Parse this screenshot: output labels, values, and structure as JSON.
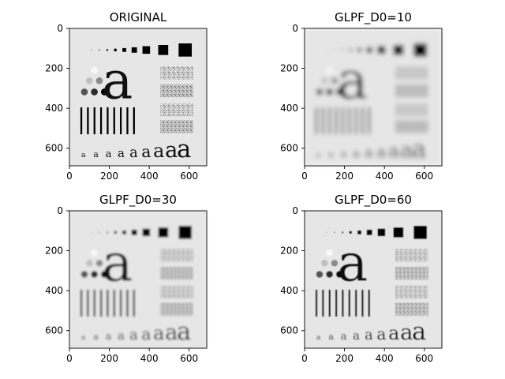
{
  "figure": {
    "panels": [
      {
        "title": "ORIGINAL",
        "blur": 0
      },
      {
        "title": "GLPF_D0=10",
        "blur": 3.0
      },
      {
        "title": "GLPF_D0=30",
        "blur": 1.2
      },
      {
        "title": "GLPF_D0=60",
        "blur": 0.5
      }
    ],
    "axes": {
      "xticks": [
        "0",
        "200",
        "400",
        "600"
      ],
      "yticks": [
        "0",
        "200",
        "400",
        "600"
      ],
      "extent": [
        0,
        688
      ]
    },
    "image_elements": {
      "big_letter": "a",
      "letter_row": "a"
    },
    "colors": {
      "background": "#e6e6e6",
      "ink": "#000000"
    }
  }
}
